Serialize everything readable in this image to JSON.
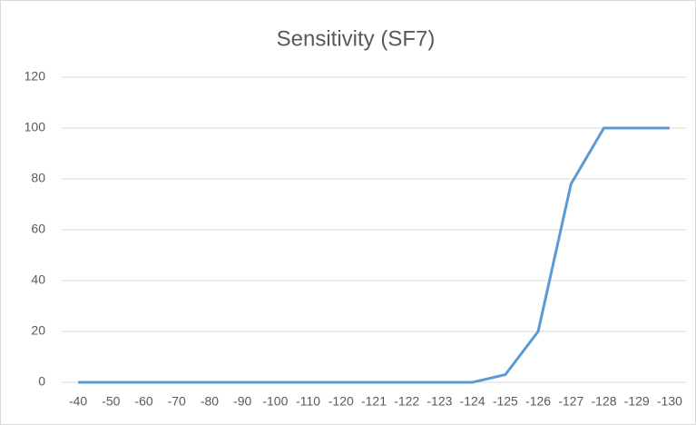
{
  "chart_data": {
    "type": "line",
    "title": "Sensitivity (SF7)",
    "categories": [
      "-40",
      "-50",
      "-60",
      "-70",
      "-80",
      "-90",
      "-100",
      "-110",
      "-120",
      "-121",
      "-122",
      "-123",
      "-124",
      "-125",
      "-126",
      "-127",
      "-128",
      "-129",
      "-130"
    ],
    "series": [
      {
        "name": "Sensitivity",
        "color": "#5b9bd5",
        "values": [
          0,
          0,
          0,
          0,
          0,
          0,
          0,
          0,
          0,
          0,
          0,
          0,
          0,
          3,
          20,
          78,
          100,
          100,
          100
        ]
      }
    ],
    "ylim": [
      0,
      120
    ],
    "yticks": [
      0,
      20,
      40,
      60,
      80,
      100,
      120
    ],
    "grid": true
  }
}
